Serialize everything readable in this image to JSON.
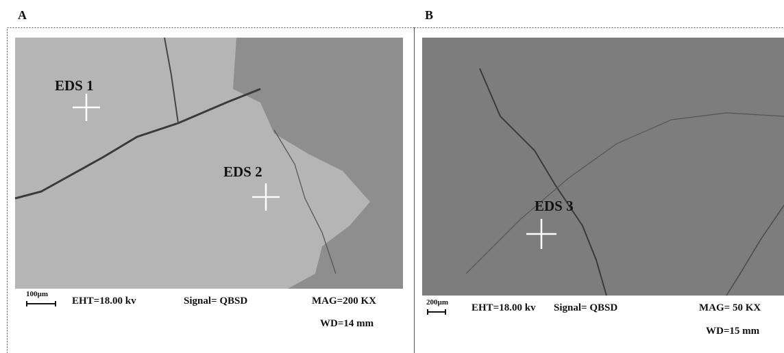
{
  "panels": [
    {
      "label": "A",
      "markers": [
        "EDS 1",
        "EDS 2"
      ],
      "scale_bar": "100µm",
      "eht": "EHT=18.00 kv",
      "signal": "Signal= QBSD",
      "mag": "MAG=200 KX",
      "wd": "WD=14 mm"
    },
    {
      "label": "B",
      "markers": [
        "EDS 3"
      ],
      "scale_bar": "200µm",
      "eht": "EHT=18.00 kv",
      "signal": "Signal= QBSD",
      "mag": "MAG= 50 KX",
      "wd": "WD=15 mm"
    }
  ]
}
